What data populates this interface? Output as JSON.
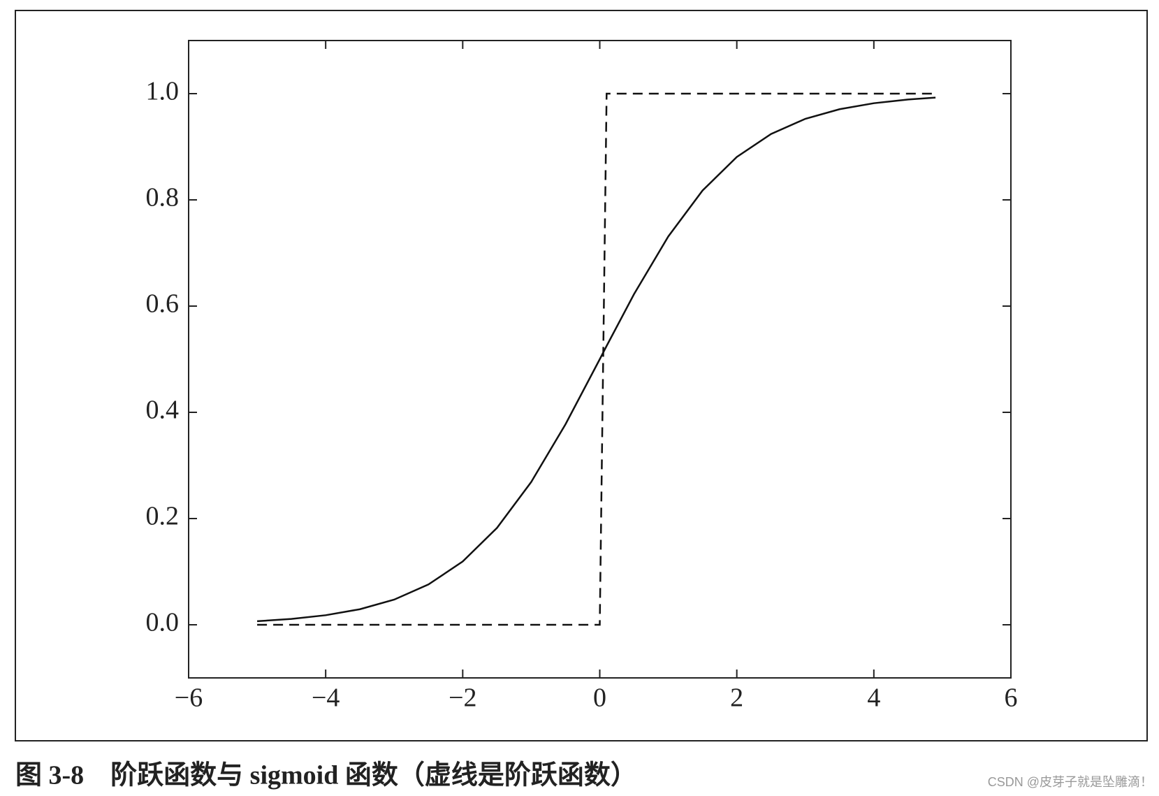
{
  "chart_data": {
    "type": "line",
    "caption": "图 3-8　阶跃函数与 sigmoid 函数（虚线是阶跃函数）",
    "watermark": "CSDN @皮芽子就是坠雕滴！",
    "x": [
      -5,
      -4.5,
      -4,
      -3.5,
      -3,
      -2.5,
      -2,
      -1.5,
      -1,
      -0.5,
      0,
      0.1,
      0.5,
      1,
      1.5,
      2,
      2.5,
      3,
      3.5,
      4,
      4.5,
      4.9
    ],
    "series": [
      {
        "style": "solid",
        "color": "#111111",
        "values": [
          0.0067,
          0.011,
          0.018,
          0.0293,
          0.0474,
          0.0759,
          0.1192,
          0.1824,
          0.2689,
          0.3775,
          0.5,
          0.525,
          0.6225,
          0.7311,
          0.8176,
          0.8808,
          0.9241,
          0.9526,
          0.9707,
          0.982,
          0.989,
          0.9926
        ]
      },
      {
        "style": "dashed",
        "color": "#111111",
        "values": [
          0,
          0,
          0,
          0,
          0,
          0,
          0,
          0,
          0,
          0,
          0,
          1,
          1,
          1,
          1,
          1,
          1,
          1,
          1,
          1,
          1,
          1
        ]
      }
    ],
    "xlim": [
      -6,
      6
    ],
    "xticks": [
      {
        "value": -6,
        "label": "−6"
      },
      {
        "value": -4,
        "label": "−4"
      },
      {
        "value": -2,
        "label": "−2"
      },
      0,
      2,
      4,
      6
    ],
    "ylim": [
      -0.1,
      1.1
    ],
    "yticks": [
      {
        "value": 0,
        "label": "0.0"
      },
      {
        "value": 0.2,
        "label": "0.2"
      },
      {
        "value": 0.4,
        "label": "0.4"
      },
      {
        "value": 0.6,
        "label": "0.6"
      },
      {
        "value": 0.8,
        "label": "0.8"
      },
      {
        "value": 1,
        "label": "1.0"
      }
    ]
  }
}
